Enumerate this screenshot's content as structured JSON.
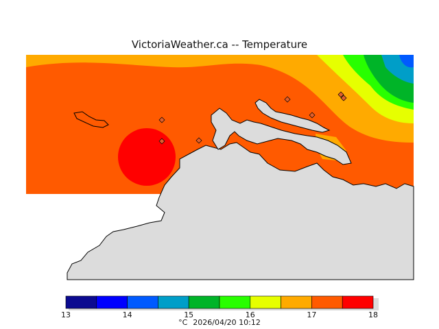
{
  "header": {
    "title": "VictoriaWeather.ca -- Temperature"
  },
  "colorbar": {
    "ticks": [
      "13",
      "14",
      "15",
      "16",
      "17",
      "18"
    ],
    "bins": [
      {
        "from": 13.0,
        "to": 13.5,
        "color": "#0b0a90"
      },
      {
        "from": 13.5,
        "to": 14.0,
        "color": "#0000ff"
      },
      {
        "from": 14.0,
        "to": 14.5,
        "color": "#005aff"
      },
      {
        "from": 14.5,
        "to": 15.0,
        "color": "#009ec8"
      },
      {
        "from": 15.0,
        "to": 15.5,
        "color": "#00b428"
      },
      {
        "from": 15.5,
        "to": 16.0,
        "color": "#28ff00"
      },
      {
        "from": 16.0,
        "to": 16.5,
        "color": "#e6ff00"
      },
      {
        "from": 16.5,
        "to": 17.0,
        "color": "#ffaa00"
      },
      {
        "from": 17.0,
        "to": 17.5,
        "color": "#ff5a00"
      },
      {
        "from": 17.5,
        "to": 18.0,
        "color": "#ff0000"
      }
    ]
  },
  "footer": {
    "unit": "°C",
    "timestamp": "2026/04/20 10:12"
  },
  "map": {
    "land_color": "#dcdcdc",
    "coast_color": "#000000",
    "station_color": "#e06030",
    "station_count": 7
  }
}
